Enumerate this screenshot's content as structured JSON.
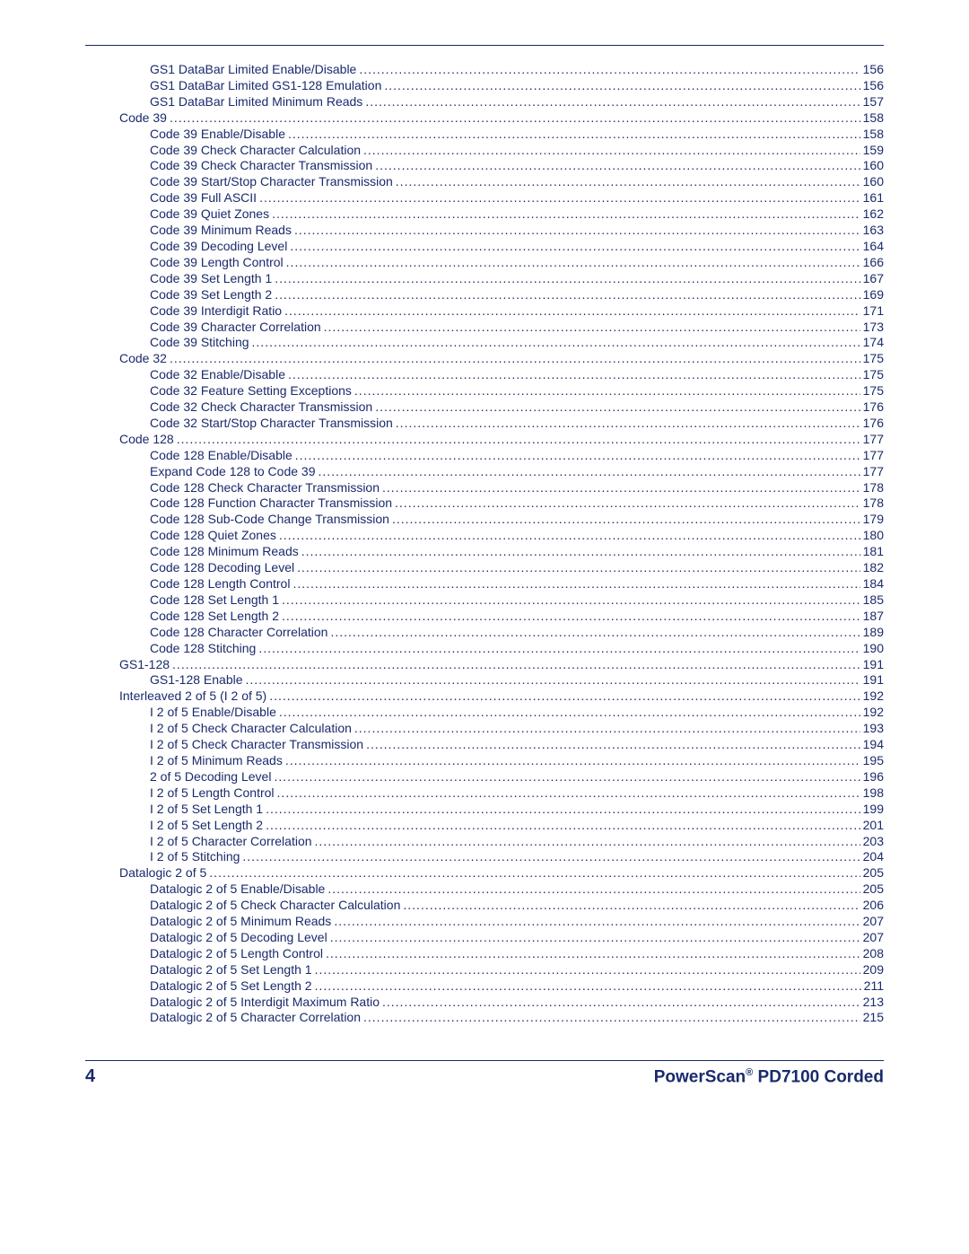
{
  "text_color": "#1a2a6c",
  "entries": [
    {
      "level": 1,
      "label": "GS1 DataBar Limited Enable/Disable",
      "page": "156"
    },
    {
      "level": 1,
      "label": "GS1 DataBar Limited GS1-128 Emulation",
      "page": "156"
    },
    {
      "level": 1,
      "label": "GS1 DataBar Limited Minimum Reads",
      "page": "157"
    },
    {
      "level": 0,
      "label": "Code 39",
      "page": "158"
    },
    {
      "level": 1,
      "label": "Code 39 Enable/Disable",
      "page": "158"
    },
    {
      "level": 1,
      "label": "Code 39 Check Character Calculation",
      "page": "159"
    },
    {
      "level": 1,
      "label": "Code 39 Check Character Transmission",
      "page": "160"
    },
    {
      "level": 1,
      "label": "Code 39 Start/Stop Character Transmission",
      "page": "160"
    },
    {
      "level": 1,
      "label": "Code 39 Full ASCII",
      "page": "161"
    },
    {
      "level": 1,
      "label": "Code 39 Quiet Zones",
      "page": "162"
    },
    {
      "level": 1,
      "label": "Code 39 Minimum Reads",
      "page": "163"
    },
    {
      "level": 1,
      "label": "Code 39 Decoding Level",
      "page": "164"
    },
    {
      "level": 1,
      "label": "Code 39 Length Control",
      "page": "166"
    },
    {
      "level": 1,
      "label": "Code 39 Set Length 1",
      "page": "167"
    },
    {
      "level": 1,
      "label": "Code 39 Set Length 2",
      "page": "169"
    },
    {
      "level": 1,
      "label": "Code 39 Interdigit Ratio",
      "page": "171"
    },
    {
      "level": 1,
      "label": "Code 39 Character Correlation",
      "page": "173"
    },
    {
      "level": 1,
      "label": "Code 39 Stitching",
      "page": "174"
    },
    {
      "level": 0,
      "label": "Code 32",
      "page": "175"
    },
    {
      "level": 1,
      "label": "Code 32 Enable/Disable",
      "page": "175"
    },
    {
      "level": 1,
      "label": "Code 32 Feature Setting Exceptions",
      "page": "175"
    },
    {
      "level": 1,
      "label": "Code 32 Check Character Transmission",
      "page": "176"
    },
    {
      "level": 1,
      "label": "Code 32 Start/Stop Character Transmission",
      "page": "176"
    },
    {
      "level": 0,
      "label": "Code 128",
      "page": "177"
    },
    {
      "level": 1,
      "label": "Code 128 Enable/Disable",
      "page": "177"
    },
    {
      "level": 1,
      "label": "Expand Code 128  to Code 39",
      "page": "177"
    },
    {
      "level": 1,
      "label": "Code 128 Check Character Transmission",
      "page": "178"
    },
    {
      "level": 1,
      "label": "Code 128 Function Character Transmission",
      "page": "178"
    },
    {
      "level": 1,
      "label": "Code 128 Sub-Code Change Transmission",
      "page": "179"
    },
    {
      "level": 1,
      "label": "Code 128 Quiet Zones",
      "page": "180"
    },
    {
      "level": 1,
      "label": "Code 128 Minimum Reads",
      "page": "181"
    },
    {
      "level": 1,
      "label": "Code 128 Decoding Level",
      "page": "182"
    },
    {
      "level": 1,
      "label": "Code 128 Length Control",
      "page": "184"
    },
    {
      "level": 1,
      "label": "Code 128 Set Length 1",
      "page": "185"
    },
    {
      "level": 1,
      "label": "Code 128 Set Length 2",
      "page": "187"
    },
    {
      "level": 1,
      "label": "Code 128 Character Correlation",
      "page": "189"
    },
    {
      "level": 1,
      "label": "Code 128 Stitching",
      "page": "190"
    },
    {
      "level": 0,
      "label": "GS1-128",
      "page": "191"
    },
    {
      "level": 1,
      "label": "GS1-128 Enable",
      "page": "191"
    },
    {
      "level": 0,
      "label": "Interleaved 2 of 5 (I 2 of 5)",
      "page": "192"
    },
    {
      "level": 1,
      "label": "I 2 of 5 Enable/Disable",
      "page": "192"
    },
    {
      "level": 1,
      "label": "I 2 of 5 Check Character Calculation",
      "page": "193"
    },
    {
      "level": 1,
      "label": "I 2 of 5 Check Character Transmission",
      "page": "194"
    },
    {
      "level": 1,
      "label": "I 2 of 5 Minimum Reads",
      "page": "195"
    },
    {
      "level": 1,
      "label": "2 of 5 Decoding Level",
      "page": "196"
    },
    {
      "level": 1,
      "label": "I 2 of 5 Length Control",
      "page": "198"
    },
    {
      "level": 1,
      "label": "I 2 of 5 Set Length 1",
      "page": "199"
    },
    {
      "level": 1,
      "label": "I 2 of 5 Set Length 2",
      "page": "201"
    },
    {
      "level": 1,
      "label": "I 2 of 5 Character Correlation",
      "page": "203"
    },
    {
      "level": 1,
      "label": "I 2 of 5 Stitching",
      "page": "204"
    },
    {
      "level": 0,
      "label": "Datalogic 2 of 5",
      "page": "205"
    },
    {
      "level": 1,
      "label": "Datalogic 2 of 5 Enable/Disable",
      "page": "205"
    },
    {
      "level": 1,
      "label": "Datalogic 2 of 5 Check Character Calculation",
      "page": "206"
    },
    {
      "level": 1,
      "label": "Datalogic 2 of 5 Minimum Reads",
      "page": "207"
    },
    {
      "level": 1,
      "label": "Datalogic 2 of 5 Decoding Level",
      "page": "207"
    },
    {
      "level": 1,
      "label": "Datalogic 2 of 5 Length Control",
      "page": "208"
    },
    {
      "level": 1,
      "label": "Datalogic 2 of 5 Set Length 1",
      "page": "209"
    },
    {
      "level": 1,
      "label": "Datalogic 2 of 5 Set Length 2",
      "page": "211"
    },
    {
      "level": 1,
      "label": "Datalogic 2 of 5 Interdigit Maximum Ratio",
      "page": "213"
    },
    {
      "level": 1,
      "label": "Datalogic 2 of 5 Character Correlation",
      "page": "215"
    }
  ],
  "footer": {
    "page_number": "4",
    "title_a": "PowerScan",
    "title_b": " PD7100 Corded"
  }
}
